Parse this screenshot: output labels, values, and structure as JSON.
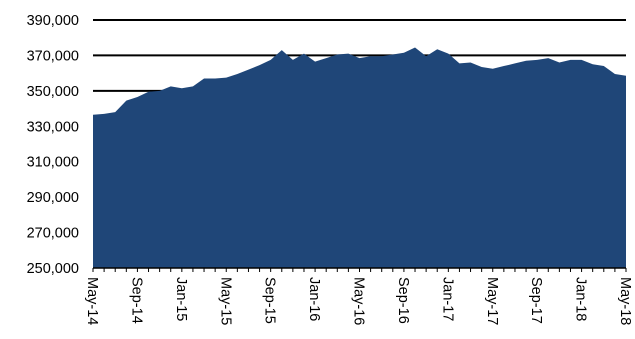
{
  "chart_data": {
    "type": "area",
    "title": "",
    "xlabel": "",
    "ylabel": "",
    "ylim": [
      250000,
      390000
    ],
    "y_ticks": [
      250000,
      270000,
      290000,
      310000,
      330000,
      350000,
      370000,
      390000
    ],
    "y_tick_labels": [
      "250,000",
      "270,000",
      "290,000",
      "310,000",
      "330,000",
      "350,000",
      "370,000",
      "390,000"
    ],
    "x_tick_labels": [
      "May-14",
      "Sep-14",
      "Jan-15",
      "May-15",
      "Sep-15",
      "Jan-16",
      "May-16",
      "Sep-16",
      "Jan-17",
      "May-17",
      "Sep-17",
      "Jan-18",
      "May-18"
    ],
    "grid": "horizontal major gridlines",
    "legend": "none",
    "color": "#1f4678",
    "series": [
      {
        "x": [
          "May-14",
          "Jun-14",
          "Jul-14",
          "Aug-14",
          "Sep-14",
          "Oct-14",
          "Nov-14",
          "Dec-14",
          "Jan-15",
          "Feb-15",
          "Mar-15",
          "Apr-15",
          "May-15",
          "Jun-15",
          "Jul-15",
          "Aug-15",
          "Sep-15",
          "Oct-15",
          "Nov-15",
          "Dec-15",
          "Jan-16",
          "Feb-16",
          "Mar-16",
          "Apr-16",
          "May-16",
          "Jun-16",
          "Jul-16",
          "Aug-16",
          "Sep-16",
          "Oct-16",
          "Nov-16",
          "Dec-16",
          "Jan-17",
          "Feb-17",
          "Mar-17",
          "Apr-17",
          "May-17",
          "Jun-17",
          "Jul-17",
          "Aug-17",
          "Sep-17",
          "Oct-17",
          "Nov-17",
          "Dec-17",
          "Jan-18",
          "Feb-18",
          "Mar-18",
          "Apr-18",
          "May-18"
        ],
        "values": [
          336500,
          337000,
          338000,
          344500,
          346500,
          349500,
          350000,
          352500,
          351500,
          352500,
          357000,
          357000,
          357500,
          359500,
          362000,
          364500,
          367500,
          373000,
          367500,
          371000,
          366500,
          368500,
          370500,
          371000,
          368500,
          369500,
          369500,
          370500,
          371500,
          374500,
          369500,
          373500,
          371000,
          365500,
          366000,
          363500,
          362500,
          364000,
          365500,
          367000,
          367500,
          368500,
          366000,
          367500,
          367500,
          365000,
          364000,
          359500,
          358500
        ]
      }
    ]
  }
}
